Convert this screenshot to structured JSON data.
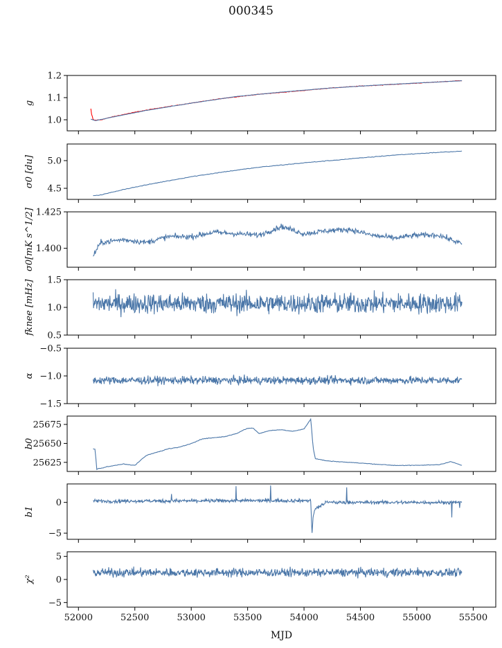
{
  "figure": {
    "title": "000345",
    "xlabel": "MJD"
  },
  "chart_data": [
    {
      "type": "line",
      "ylabel": "g",
      "ylim": [
        0.95,
        1.2
      ],
      "yticks": [
        1.0,
        1.1,
        1.2
      ],
      "yticklabels": [
        "1.0",
        "1.1",
        "1.2"
      ],
      "xlim": [
        51900,
        55700
      ],
      "series": [
        {
          "color": "#ff0000",
          "x": [
            52110,
            52120,
            52140,
            52200,
            52300,
            52500,
            52700,
            53000,
            53300,
            53600,
            53900,
            54200,
            54500,
            54800,
            55100,
            55400
          ],
          "y": [
            1.04,
            1.005,
            0.998,
            1.0,
            1.013,
            1.034,
            1.052,
            1.075,
            1.098,
            1.115,
            1.128,
            1.142,
            1.152,
            1.16,
            1.168,
            1.177
          ]
        },
        {
          "color": "#4a76a8",
          "x": [
            52110,
            52150,
            52300,
            52600,
            53000,
            53400,
            53800,
            54200,
            54600,
            55000,
            55400
          ],
          "y": [
            1.003,
            0.996,
            1.012,
            1.042,
            1.075,
            1.105,
            1.125,
            1.142,
            1.155,
            1.166,
            1.176
          ]
        }
      ]
    },
    {
      "type": "line",
      "ylabel": "σ0 [du]",
      "ylim": [
        4.3,
        5.3
      ],
      "yticks": [
        4.5,
        5.0
      ],
      "yticklabels": [
        "4.5",
        "5.0"
      ],
      "xlim": [
        51900,
        55700
      ],
      "series": [
        {
          "color": "#4a76a8",
          "x": [
            52130,
            52200,
            52400,
            52700,
            53000,
            53300,
            53600,
            54000,
            54400,
            54800,
            55200,
            55400
          ],
          "y": [
            4.37,
            4.38,
            4.48,
            4.6,
            4.71,
            4.8,
            4.88,
            4.96,
            5.03,
            5.1,
            5.15,
            5.17
          ]
        }
      ]
    },
    {
      "type": "line",
      "ylabel": "σ0[mK s^1/2]",
      "ylim": [
        1.387,
        1.425
      ],
      "yticks": [
        1.4,
        1.425
      ],
      "yticklabels": [
        "1.400",
        "1.425"
      ],
      "xlim": [
        51900,
        55700
      ],
      "series": [
        {
          "color": "#4a76a8",
          "x": [
            52130,
            52200,
            52400,
            52600,
            52800,
            53000,
            53200,
            53400,
            53600,
            53800,
            54000,
            54200,
            54400,
            54600,
            54800,
            55000,
            55200,
            55400
          ],
          "y": [
            1.395,
            1.404,
            1.406,
            1.404,
            1.408,
            1.408,
            1.411,
            1.41,
            1.409,
            1.415,
            1.41,
            1.412,
            1.413,
            1.409,
            1.407,
            1.409,
            1.409,
            1.403
          ]
        }
      ]
    },
    {
      "type": "line",
      "ylabel": "fknee [mHz]",
      "ylim": [
        0.5,
        1.5
      ],
      "yticks": [
        0.5,
        1.0,
        1.5
      ],
      "yticklabels": [
        "0.5",
        "1.0",
        "1.5"
      ],
      "xlim": [
        51900,
        55700
      ],
      "series": [
        {
          "color": "#4a76a8",
          "x": [
            52130,
            55400
          ],
          "y": [
            1.07,
            1.07
          ]
        }
      ]
    },
    {
      "type": "line",
      "ylabel": "α",
      "ylim": [
        -1.5,
        -0.5
      ],
      "yticks": [
        -1.5,
        -1.0,
        -0.5
      ],
      "yticklabels": [
        "−1.5",
        "−1.0",
        "−0.5"
      ],
      "xlim": [
        51900,
        55700
      ],
      "series": [
        {
          "color": "#4a76a8",
          "x": [
            52130,
            55400
          ],
          "y": [
            -1.08,
            -1.08
          ]
        }
      ]
    },
    {
      "type": "line",
      "ylabel": "b0",
      "ylim": [
        25613,
        25686
      ],
      "yticks": [
        25625,
        25650,
        25675
      ],
      "yticklabels": [
        "25625",
        "25650",
        "25675"
      ],
      "xlim": [
        51900,
        55700
      ],
      "series": [
        {
          "color": "#4a76a8",
          "x": [
            52130,
            52150,
            52160,
            52250,
            52400,
            52500,
            52600,
            52800,
            52900,
            53000,
            53100,
            53300,
            53400,
            53500,
            53550,
            53600,
            53700,
            53800,
            53900,
            54000,
            54060,
            54080,
            54100,
            54200,
            54500,
            54800,
            55000,
            55200,
            55300,
            55400
          ],
          "y": [
            25643,
            25642,
            25616,
            25619,
            25623,
            25621,
            25634,
            25643,
            25645,
            25650,
            25656,
            25659,
            25663,
            25670,
            25670,
            25663,
            25667,
            25668,
            25666,
            25669,
            25682,
            25645,
            25630,
            25627,
            25624,
            25621,
            25621,
            25622,
            25626,
            25621
          ]
        }
      ]
    },
    {
      "type": "line",
      "ylabel": "b1",
      "ylim": [
        -6,
        3
      ],
      "yticks": [
        -5,
        0
      ],
      "yticklabels": [
        "−5",
        "0"
      ],
      "xlim": [
        51900,
        55700
      ],
      "series": [
        {
          "color": "#4a76a8",
          "x": [
            52130,
            54060,
            54070,
            54080,
            54100,
            54200,
            55400
          ],
          "y": [
            0.2,
            0.3,
            -5.2,
            -2.5,
            -1,
            0,
            0
          ]
        }
      ]
    },
    {
      "type": "line",
      "ylabel": "χ²",
      "ylim": [
        -6,
        6
      ],
      "yticks": [
        -5,
        0,
        5
      ],
      "yticklabels": [
        "−5",
        "0",
        "5"
      ],
      "xlim": [
        51900,
        55700
      ],
      "series": [
        {
          "color": "#4a76a8",
          "x": [
            52130,
            55400
          ],
          "y": [
            1.5,
            1.5
          ]
        }
      ]
    }
  ],
  "xaxis": {
    "ticks": [
      52000,
      52500,
      53000,
      53500,
      54000,
      54500,
      55000,
      55500
    ],
    "ticklabels": [
      "52000",
      "52500",
      "53000",
      "53500",
      "54000",
      "54500",
      "55000",
      "55500"
    ]
  }
}
